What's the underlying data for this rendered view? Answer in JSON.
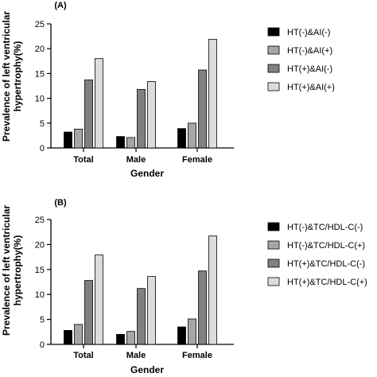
{
  "chart_data": [
    {
      "panel": "(A)",
      "type": "bar",
      "categories": [
        "Total",
        "Male",
        "Female"
      ],
      "xlabel": "Gender",
      "ylabel_lines": [
        "Prevalence of left ventricular",
        "hypertrophy(%)"
      ],
      "ylim": [
        0,
        25
      ],
      "yticks": [
        0,
        5,
        10,
        15,
        20,
        25
      ],
      "legend_position": "right",
      "series": [
        {
          "name": "HT(-)&AI(-)",
          "color": "#000000",
          "values": [
            3.2,
            2.3,
            3.9
          ]
        },
        {
          "name": "HT(-)&AI(+)",
          "color": "#a6a6a6",
          "values": [
            3.8,
            2.1,
            5.0
          ]
        },
        {
          "name": "HT(+)&AI(-)",
          "color": "#808080",
          "values": [
            13.7,
            11.8,
            15.7
          ]
        },
        {
          "name": "HT(+)&AI(+)",
          "color": "#dcdcdc",
          "values": [
            18.0,
            13.4,
            21.9
          ]
        }
      ]
    },
    {
      "panel": "(B)",
      "type": "bar",
      "categories": [
        "Total",
        "Male",
        "Female"
      ],
      "xlabel": "Gender",
      "ylabel_lines": [
        "Prevalence of left ventricular",
        "hypertrophy(%)"
      ],
      "ylim": [
        0,
        25
      ],
      "yticks": [
        0,
        5,
        10,
        15,
        20,
        25
      ],
      "legend_position": "right",
      "series": [
        {
          "name": "HT(-)&TC/HDL-C(-)",
          "color": "#000000",
          "values": [
            2.8,
            2.0,
            3.5
          ]
        },
        {
          "name": "HT(-)&TC/HDL-C(+)",
          "color": "#a6a6a6",
          "values": [
            4.0,
            2.6,
            5.1
          ]
        },
        {
          "name": "HT(+)&TC/HDL-C(-)",
          "color": "#808080",
          "values": [
            12.8,
            11.2,
            14.7
          ]
        },
        {
          "name": "HT(+)&TC/HDL-C(+)",
          "color": "#dcdcdc",
          "values": [
            17.9,
            13.6,
            21.7
          ]
        }
      ]
    }
  ]
}
